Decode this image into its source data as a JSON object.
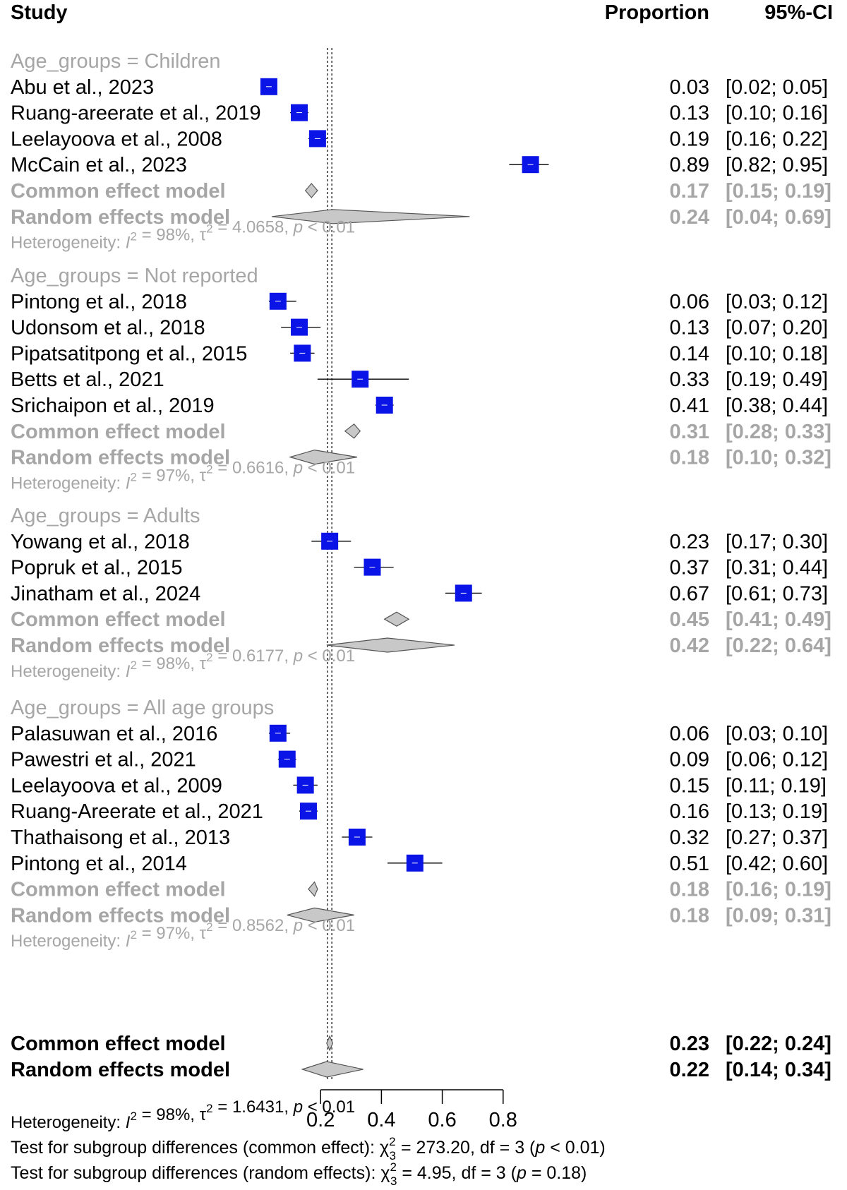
{
  "chart_data": {
    "type": "forest",
    "x_axis": {
      "ticks": [
        0.2,
        0.4,
        0.6,
        0.8
      ],
      "tick_labels": [
        "0.2",
        "0.4",
        "0.6",
        "0.8"
      ],
      "range": [
        0.2,
        0.8
      ],
      "reference_line": 0.23
    },
    "headers": {
      "study": "Study",
      "proportion": "Proportion",
      "ci": "95%-CI"
    },
    "groups": [
      {
        "label": "Age_groups = Children",
        "studies": [
          {
            "name": "Abu et al., 2023",
            "prop": 0.03,
            "lo": 0.02,
            "hi": 0.05,
            "prop_text": "0.03",
            "ci_text": "[0.02; 0.05]"
          },
          {
            "name": "Ruang-areerate et al., 2019",
            "prop": 0.13,
            "lo": 0.1,
            "hi": 0.16,
            "prop_text": "0.13",
            "ci_text": "[0.10; 0.16]"
          },
          {
            "name": "Leelayoova et al., 2008",
            "prop": 0.19,
            "lo": 0.16,
            "hi": 0.22,
            "prop_text": "0.19",
            "ci_text": "[0.16; 0.22]"
          },
          {
            "name": "McCain et al., 2023",
            "prop": 0.89,
            "lo": 0.82,
            "hi": 0.95,
            "prop_text": "0.89",
            "ci_text": "[0.82; 0.95]"
          }
        ],
        "common": {
          "label": "Common effect model",
          "est": 0.17,
          "lo": 0.15,
          "hi": 0.19,
          "prop_text": "0.17",
          "ci_text": "[0.15; 0.19]"
        },
        "random": {
          "label": "Random effects model",
          "est": 0.24,
          "lo": 0.04,
          "hi": 0.69,
          "prop_text": "0.24",
          "ci_text": "[0.04; 0.69]"
        },
        "heterogeneity": {
          "prefix": "Heterogeneity: ",
          "i2_symbol": "I",
          "i2_value": " = 98%, ",
          "tau2_symbol": "τ",
          "tau2_value": " = 4.0658, ",
          "p_symbol": "p",
          "p_value": " < 0.01"
        }
      },
      {
        "label": "Age_groups = Not reported",
        "studies": [
          {
            "name": "Pintong et al., 2018",
            "prop": 0.06,
            "lo": 0.03,
            "hi": 0.12,
            "prop_text": "0.06",
            "ci_text": "[0.03; 0.12]"
          },
          {
            "name": "Udonsom et al., 2018",
            "prop": 0.13,
            "lo": 0.07,
            "hi": 0.2,
            "prop_text": "0.13",
            "ci_text": "[0.07; 0.20]"
          },
          {
            "name": "Pipatsatitpong et al., 2015",
            "prop": 0.14,
            "lo": 0.1,
            "hi": 0.18,
            "prop_text": "0.14",
            "ci_text": "[0.10; 0.18]"
          },
          {
            "name": "Betts et al., 2021",
            "prop": 0.33,
            "lo": 0.19,
            "hi": 0.49,
            "prop_text": "0.33",
            "ci_text": "[0.19; 0.49]"
          },
          {
            "name": "Srichaipon et al., 2019",
            "prop": 0.41,
            "lo": 0.38,
            "hi": 0.44,
            "prop_text": "0.41",
            "ci_text": "[0.38; 0.44]"
          }
        ],
        "common": {
          "label": "Common effect model",
          "est": 0.31,
          "lo": 0.28,
          "hi": 0.33,
          "prop_text": "0.31",
          "ci_text": "[0.28; 0.33]"
        },
        "random": {
          "label": "Random effects model",
          "est": 0.18,
          "lo": 0.1,
          "hi": 0.32,
          "prop_text": "0.18",
          "ci_text": "[0.10; 0.32]"
        },
        "heterogeneity": {
          "prefix": "Heterogeneity: ",
          "i2_symbol": "I",
          "i2_value": " = 97%, ",
          "tau2_symbol": "τ",
          "tau2_value": " = 0.6616, ",
          "p_symbol": "p",
          "p_value": " < 0.01"
        }
      },
      {
        "label": "Age_groups = Adults",
        "studies": [
          {
            "name": "Yowang et al., 2018",
            "prop": 0.23,
            "lo": 0.17,
            "hi": 0.3,
            "prop_text": "0.23",
            "ci_text": "[0.17; 0.30]"
          },
          {
            "name": "Popruk et al., 2015",
            "prop": 0.37,
            "lo": 0.31,
            "hi": 0.44,
            "prop_text": "0.37",
            "ci_text": "[0.31; 0.44]"
          },
          {
            "name": "Jinatham et al., 2024",
            "prop": 0.67,
            "lo": 0.61,
            "hi": 0.73,
            "prop_text": "0.67",
            "ci_text": "[0.61; 0.73]"
          }
        ],
        "common": {
          "label": "Common effect model",
          "est": 0.45,
          "lo": 0.41,
          "hi": 0.49,
          "prop_text": "0.45",
          "ci_text": "[0.41; 0.49]"
        },
        "random": {
          "label": "Random effects model",
          "est": 0.42,
          "lo": 0.22,
          "hi": 0.64,
          "prop_text": "0.42",
          "ci_text": "[0.22; 0.64]"
        },
        "heterogeneity": {
          "prefix": "Heterogeneity: ",
          "i2_symbol": "I",
          "i2_value": " = 98%, ",
          "tau2_symbol": "τ",
          "tau2_value": " = 0.6177, ",
          "p_symbol": "p",
          "p_value": " < 0.01"
        }
      },
      {
        "label": "Age_groups = All age groups",
        "studies": [
          {
            "name": "Palasuwan et al., 2016",
            "prop": 0.06,
            "lo": 0.03,
            "hi": 0.1,
            "prop_text": "0.06",
            "ci_text": "[0.03; 0.10]"
          },
          {
            "name": "Pawestri et al., 2021",
            "prop": 0.09,
            "lo": 0.06,
            "hi": 0.12,
            "prop_text": "0.09",
            "ci_text": "[0.06; 0.12]"
          },
          {
            "name": "Leelayoova et al., 2009",
            "prop": 0.15,
            "lo": 0.11,
            "hi": 0.19,
            "prop_text": "0.15",
            "ci_text": "[0.11; 0.19]"
          },
          {
            "name": "Ruang-Areerate et al., 2021",
            "prop": 0.16,
            "lo": 0.13,
            "hi": 0.19,
            "prop_text": "0.16",
            "ci_text": "[0.13; 0.19]"
          },
          {
            "name": "Thathaisong et al., 2013",
            "prop": 0.32,
            "lo": 0.27,
            "hi": 0.37,
            "prop_text": "0.32",
            "ci_text": "[0.27; 0.37]"
          },
          {
            "name": "Pintong et al., 2014",
            "prop": 0.51,
            "lo": 0.42,
            "hi": 0.6,
            "prop_text": "0.51",
            "ci_text": "[0.42; 0.60]"
          }
        ],
        "common": {
          "label": "Common effect model",
          "est": 0.18,
          "lo": 0.16,
          "hi": 0.19,
          "prop_text": "0.18",
          "ci_text": "[0.16; 0.19]"
        },
        "random": {
          "label": "Random effects model",
          "est": 0.18,
          "lo": 0.09,
          "hi": 0.31,
          "prop_text": "0.18",
          "ci_text": "[0.09; 0.31]"
        },
        "heterogeneity": {
          "prefix": "Heterogeneity: ",
          "i2_symbol": "I",
          "i2_value": " = 97%, ",
          "tau2_symbol": "τ",
          "tau2_value": " = 0.8562, ",
          "p_symbol": "p",
          "p_value": " < 0.01"
        }
      }
    ],
    "overall": {
      "common": {
        "label": "Common effect model",
        "est": 0.23,
        "lo": 0.22,
        "hi": 0.24,
        "prop_text": "0.23",
        "ci_text": "[0.22; 0.24]"
      },
      "random": {
        "label": "Random effects model",
        "est": 0.22,
        "lo": 0.14,
        "hi": 0.34,
        "prop_text": "0.22",
        "ci_text": "[0.14; 0.34]"
      },
      "heterogeneity": {
        "prefix": "Heterogeneity: ",
        "i2_symbol": "I",
        "i2_value": " = 98%, ",
        "tau2_symbol": "τ",
        "tau2_value": " = 1.6431, ",
        "p_symbol": "p",
        "p_value": " < 0.01"
      },
      "subgroup_tests": [
        {
          "prefix": "Test for subgroup differences (common effect): ",
          "chi_symbol": "χ",
          "df_sub": "3",
          "value": " = 273.20, df = 3 (",
          "p_symbol": "p",
          "p_value": " < 0.01)"
        },
        {
          "prefix": "Test for subgroup differences (random effects): ",
          "chi_symbol": "χ",
          "df_sub": "3",
          "value": " = 4.95, df = 3 (",
          "p_symbol": "p",
          "p_value": " = 0.18)"
        }
      ]
    },
    "colors": {
      "study_box": "#0a14e6",
      "line": "#000000",
      "subgroup_text": "#a6a6a6",
      "subgroup_diamond": "#c8c8c8",
      "diamond_stroke": "#555555",
      "overall_diamond": "#c8c8c8"
    }
  }
}
